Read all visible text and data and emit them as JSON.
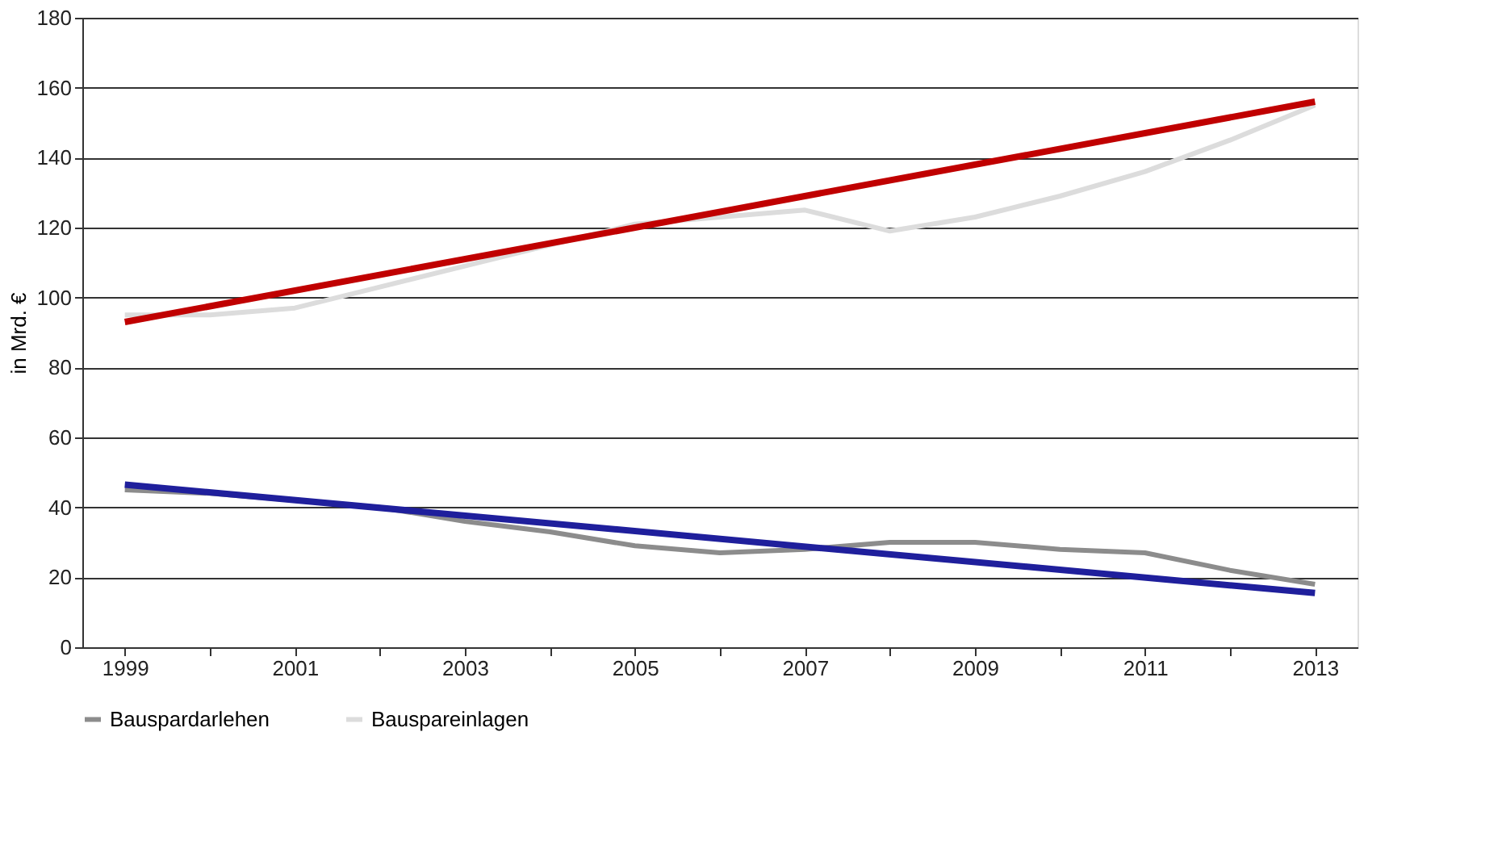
{
  "chart_data": {
    "type": "line",
    "ylabel": "in Mrd. €",
    "categories": [
      "1999",
      null,
      "2001",
      null,
      "2003",
      null,
      "2005",
      null,
      "2007",
      null,
      "2009",
      null,
      "2011",
      null,
      "2013"
    ],
    "ylim": [
      0,
      180
    ],
    "yticks": [
      0,
      20,
      40,
      60,
      80,
      100,
      120,
      140,
      160,
      180
    ],
    "grid": "y",
    "legend": "bottom",
    "line_style": "solid",
    "series": [
      {
        "name": "Bauspardarlehen",
        "color": "#8c8c8c",
        "values": [
          45,
          44,
          42,
          40,
          36,
          33,
          29,
          27,
          28,
          30,
          30,
          28,
          27,
          22,
          18
        ]
      },
      {
        "name": "Bauspareinlagen",
        "color": "#dcdcdc",
        "values": [
          95,
          95,
          97,
          103,
          109,
          115,
          121,
          123,
          125,
          119,
          123,
          129,
          136,
          145,
          155
        ]
      },
      {
        "color": "#c00000",
        "values": [
          93,
          null,
          null,
          null,
          null,
          null,
          null,
          null,
          null,
          null,
          null,
          null,
          null,
          null,
          156
        ]
      },
      {
        "color": "#1f1f9c",
        "values": [
          46.5,
          null,
          null,
          null,
          null,
          null,
          null,
          null,
          null,
          null,
          null,
          null,
          null,
          null,
          15.5
        ]
      }
    ]
  }
}
